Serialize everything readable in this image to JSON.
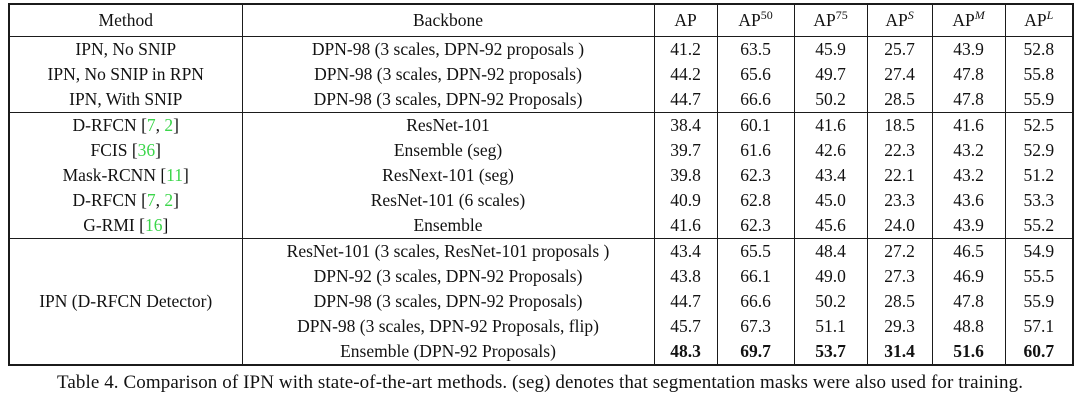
{
  "page": {
    "caption": "Table 4. Comparison of IPN with state-of-the-art methods. (seg) denotes that segmentation masks were also used for training."
  },
  "colors": {
    "citation_green": "#3bd64a",
    "text": "#121212",
    "border": "#1b1b1b",
    "background": "#ffffff"
  },
  "table": {
    "header": {
      "method": "Method",
      "backbone": "Backbone",
      "metrics": [
        {
          "base": "AP",
          "sup": "",
          "italic": false
        },
        {
          "base": "AP",
          "sup": "50",
          "italic": false
        },
        {
          "base": "AP",
          "sup": "75",
          "italic": false
        },
        {
          "base": "AP",
          "sup": "S",
          "italic": true
        },
        {
          "base": "AP",
          "sup": "M",
          "italic": true
        },
        {
          "base": "AP",
          "sup": "L",
          "italic": true
        }
      ]
    },
    "sections": [
      {
        "rows": [
          {
            "method": {
              "text": "IPN, No SNIP",
              "refs": []
            },
            "backbone": "DPN-98 (3 scales, DPN-92 proposals )",
            "values": [
              "41.2",
              "63.5",
              "45.9",
              "25.7",
              "43.9",
              "52.8"
            ],
            "bold": false
          },
          {
            "method": {
              "text": "IPN, No SNIP in RPN",
              "refs": []
            },
            "backbone": "DPN-98 (3 scales, DPN-92 proposals)",
            "values": [
              "44.2",
              "65.6",
              "49.7",
              "27.4",
              "47.8",
              "55.8"
            ],
            "bold": false
          },
          {
            "method": {
              "text": "IPN, With SNIP",
              "refs": []
            },
            "backbone": "DPN-98 (3 scales, DPN-92 Proposals)",
            "values": [
              "44.7",
              "66.6",
              "50.2",
              "28.5",
              "47.8",
              "55.9"
            ],
            "bold": false
          }
        ]
      },
      {
        "rows": [
          {
            "method": {
              "text": "D-RFCN",
              "refs": [
                "7",
                "2"
              ]
            },
            "backbone": "ResNet-101",
            "values": [
              "38.4",
              "60.1",
              "41.6",
              "18.5",
              "41.6",
              "52.5"
            ],
            "bold": false
          },
          {
            "method": {
              "text": "FCIS",
              "refs": [
                "36"
              ]
            },
            "backbone": "Ensemble (seg)",
            "values": [
              "39.7",
              "61.6",
              "42.6",
              "22.3",
              "43.2",
              "52.9"
            ],
            "bold": false
          },
          {
            "method": {
              "text": "Mask-RCNN",
              "refs": [
                "11"
              ]
            },
            "backbone": "ResNext-101 (seg)",
            "values": [
              "39.8",
              "62.3",
              "43.4",
              "22.1",
              "43.2",
              "51.2"
            ],
            "bold": false
          },
          {
            "method": {
              "text": "D-RFCN",
              "refs": [
                "7",
                "2"
              ]
            },
            "backbone": "ResNet-101 (6 scales)",
            "values": [
              "40.9",
              "62.8",
              "45.0",
              "23.3",
              "43.6",
              "53.3"
            ],
            "bold": false
          },
          {
            "method": {
              "text": "G-RMI",
              "refs": [
                "16"
              ]
            },
            "backbone": "Ensemble",
            "values": [
              "41.6",
              "62.3",
              "45.6",
              "24.0",
              "43.9",
              "55.2"
            ],
            "bold": false
          }
        ]
      },
      {
        "merged_method": "IPN (D-RFCN Detector)",
        "rows": [
          {
            "backbone": "ResNet-101 (3 scales, ResNet-101 proposals )",
            "values": [
              "43.4",
              "65.5",
              "48.4",
              "27.2",
              "46.5",
              "54.9"
            ],
            "bold": false
          },
          {
            "backbone": "DPN-92 (3 scales, DPN-92 Proposals)",
            "values": [
              "43.8",
              "66.1",
              "49.0",
              "27.3",
              "46.9",
              "55.5"
            ],
            "bold": false
          },
          {
            "backbone": "DPN-98 (3 scales, DPN-92 Proposals)",
            "values": [
              "44.7",
              "66.6",
              "50.2",
              "28.5",
              "47.8",
              "55.9"
            ],
            "bold": false
          },
          {
            "backbone": "DPN-98 (3 scales, DPN-92 Proposals, flip)",
            "values": [
              "45.7",
              "67.3",
              "51.1",
              "29.3",
              "48.8",
              "57.1"
            ],
            "bold": false
          },
          {
            "backbone": "Ensemble (DPN-92 Proposals)",
            "values": [
              "48.3",
              "69.7",
              "53.7",
              "31.4",
              "51.6",
              "60.7"
            ],
            "bold": true
          }
        ]
      }
    ]
  }
}
